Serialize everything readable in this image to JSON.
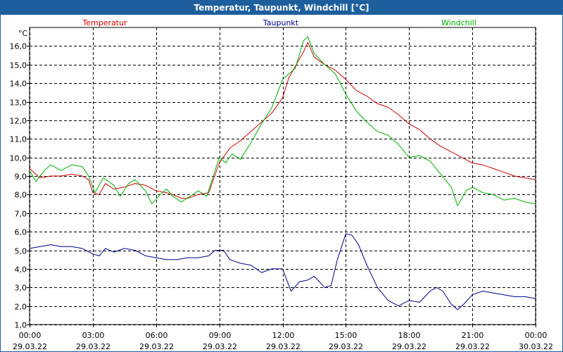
{
  "chart_data": {
    "type": "line",
    "title": "Temperatur, Taupunkt, Windchill [°C]",
    "ylabel": "°C",
    "xlabel": "",
    "ylim": [
      1,
      17
    ],
    "xlim_hours": [
      0,
      24
    ],
    "grid": true,
    "yticks": [
      1,
      2,
      3,
      4,
      5,
      6,
      7,
      8,
      9,
      10,
      11,
      12,
      13,
      14,
      15,
      16
    ],
    "ytick_labels": [
      "1,0",
      "2,0",
      "3,0",
      "4,0",
      "5,0",
      "6,0",
      "7,0",
      "8,0",
      "9,0",
      "10,0",
      "11,0",
      "12,0",
      "13,0",
      "14,0",
      "15,0",
      "16,0"
    ],
    "xticks": [
      {
        "hour": 0,
        "time": "00:00",
        "date": "29.03.22"
      },
      {
        "hour": 3,
        "time": "03:00",
        "date": "29.03.22"
      },
      {
        "hour": 6,
        "time": "06:00",
        "date": "29.03.22"
      },
      {
        "hour": 9,
        "time": "09:00",
        "date": "29.03.22"
      },
      {
        "hour": 12,
        "time": "12:00",
        "date": "29.03.22"
      },
      {
        "hour": 15,
        "time": "15:00",
        "date": "29.03.22"
      },
      {
        "hour": 18,
        "time": "18:00",
        "date": "29.03.22"
      },
      {
        "hour": 21,
        "time": "21:00",
        "date": "29.03.22"
      },
      {
        "hour": 24,
        "time": "00:00",
        "date": "30.03.22"
      }
    ],
    "series": [
      {
        "name": "Temperatur",
        "color": "#cc0000",
        "legend_pos": "left",
        "points": [
          [
            0,
            9.4
          ],
          [
            0.5,
            8.9
          ],
          [
            1,
            9.0
          ],
          [
            1.5,
            9.0
          ],
          [
            2,
            9.1
          ],
          [
            2.5,
            9.0
          ],
          [
            2.8,
            8.8
          ],
          [
            3,
            8.1
          ],
          [
            3.3,
            8.0
          ],
          [
            3.6,
            8.6
          ],
          [
            4,
            8.3
          ],
          [
            4.5,
            8.4
          ],
          [
            5,
            8.6
          ],
          [
            5.5,
            8.5
          ],
          [
            6,
            8.2
          ],
          [
            6.5,
            8.1
          ],
          [
            6.8,
            8.0
          ],
          [
            7.2,
            7.8
          ],
          [
            7.5,
            7.8
          ],
          [
            8,
            8.0
          ],
          [
            8.5,
            8.1
          ],
          [
            9,
            9.7
          ],
          [
            9.5,
            10.5
          ],
          [
            10,
            10.9
          ],
          [
            10.5,
            11.4
          ],
          [
            11,
            11.9
          ],
          [
            11.5,
            12.4
          ],
          [
            12,
            13.2
          ],
          [
            12.3,
            14.3
          ],
          [
            12.6,
            14.9
          ],
          [
            13,
            15.7
          ],
          [
            13.2,
            16.2
          ],
          [
            13.5,
            15.4
          ],
          [
            14,
            15.0
          ],
          [
            14.5,
            14.7
          ],
          [
            15,
            14.2
          ],
          [
            15.5,
            13.6
          ],
          [
            16,
            13.3
          ],
          [
            16.5,
            12.9
          ],
          [
            17,
            12.7
          ],
          [
            17.5,
            12.3
          ],
          [
            18,
            11.8
          ],
          [
            18.5,
            11.5
          ],
          [
            19,
            11.0
          ],
          [
            19.5,
            10.6
          ],
          [
            20,
            10.3
          ],
          [
            20.5,
            10.0
          ],
          [
            21,
            9.7
          ],
          [
            21.5,
            9.6
          ],
          [
            22,
            9.4
          ],
          [
            22.5,
            9.2
          ],
          [
            23,
            9.0
          ],
          [
            23.5,
            8.9
          ],
          [
            24,
            8.8
          ]
        ]
      },
      {
        "name": "Taupunkt",
        "color": "#00008b",
        "legend_pos": "center",
        "points": [
          [
            0,
            5.1
          ],
          [
            0.5,
            5.2
          ],
          [
            1,
            5.3
          ],
          [
            1.5,
            5.2
          ],
          [
            2,
            5.2
          ],
          [
            2.5,
            5.1
          ],
          [
            3,
            4.8
          ],
          [
            3.3,
            4.7
          ],
          [
            3.6,
            5.1
          ],
          [
            4,
            4.9
          ],
          [
            4.5,
            5.1
          ],
          [
            5,
            5.0
          ],
          [
            5.5,
            4.7
          ],
          [
            6,
            4.6
          ],
          [
            6.5,
            4.5
          ],
          [
            7,
            4.5
          ],
          [
            7.5,
            4.6
          ],
          [
            8,
            4.6
          ],
          [
            8.5,
            4.7
          ],
          [
            8.8,
            5.0
          ],
          [
            9.2,
            5.0
          ],
          [
            9.5,
            4.5
          ],
          [
            10,
            4.3
          ],
          [
            10.5,
            4.2
          ],
          [
            11,
            3.8
          ],
          [
            11.5,
            4.0
          ],
          [
            12,
            4.0
          ],
          [
            12.2,
            3.4
          ],
          [
            12.4,
            2.8
          ],
          [
            12.8,
            3.3
          ],
          [
            13.2,
            3.4
          ],
          [
            13.5,
            3.6
          ],
          [
            14,
            3.0
          ],
          [
            14.3,
            3.1
          ],
          [
            14.6,
            4.5
          ],
          [
            15,
            5.9
          ],
          [
            15.3,
            5.8
          ],
          [
            15.6,
            5.3
          ],
          [
            16,
            4.2
          ],
          [
            16.5,
            3.0
          ],
          [
            17,
            2.3
          ],
          [
            17.5,
            2.0
          ],
          [
            18,
            2.3
          ],
          [
            18.5,
            2.2
          ],
          [
            19,
            2.8
          ],
          [
            19.3,
            3.0
          ],
          [
            19.6,
            2.8
          ],
          [
            20,
            2.1
          ],
          [
            20.3,
            1.8
          ],
          [
            20.6,
            2.1
          ],
          [
            21,
            2.6
          ],
          [
            21.5,
            2.8
          ],
          [
            22,
            2.7
          ],
          [
            22.5,
            2.6
          ],
          [
            23,
            2.5
          ],
          [
            23.5,
            2.5
          ],
          [
            24,
            2.4
          ]
        ]
      },
      {
        "name": "Windchill",
        "color": "#00b000",
        "legend_pos": "right",
        "points": [
          [
            0,
            9.3
          ],
          [
            0.3,
            8.7
          ],
          [
            0.7,
            9.3
          ],
          [
            1,
            9.6
          ],
          [
            1.5,
            9.3
          ],
          [
            2,
            9.6
          ],
          [
            2.5,
            9.5
          ],
          [
            2.8,
            9.0
          ],
          [
            3.1,
            8.1
          ],
          [
            3.5,
            8.9
          ],
          [
            4,
            8.5
          ],
          [
            4.3,
            7.9
          ],
          [
            4.7,
            8.6
          ],
          [
            5,
            8.8
          ],
          [
            5.5,
            8.2
          ],
          [
            5.8,
            7.5
          ],
          [
            6.2,
            8.0
          ],
          [
            6.5,
            8.3
          ],
          [
            6.8,
            7.9
          ],
          [
            7.2,
            7.6
          ],
          [
            7.6,
            7.9
          ],
          [
            8,
            8.2
          ],
          [
            8.4,
            7.9
          ],
          [
            8.8,
            9.3
          ],
          [
            9,
            10.0
          ],
          [
            9.3,
            9.7
          ],
          [
            9.6,
            10.2
          ],
          [
            10,
            9.9
          ],
          [
            10.5,
            10.8
          ],
          [
            11,
            11.8
          ],
          [
            11.5,
            12.7
          ],
          [
            12,
            14.2
          ],
          [
            12.3,
            14.5
          ],
          [
            12.6,
            14.8
          ],
          [
            13,
            16.3
          ],
          [
            13.2,
            16.5
          ],
          [
            13.5,
            15.6
          ],
          [
            14,
            15.0
          ],
          [
            14.5,
            14.5
          ],
          [
            15,
            13.4
          ],
          [
            15.5,
            12.5
          ],
          [
            16,
            11.9
          ],
          [
            16.5,
            11.4
          ],
          [
            17,
            11.2
          ],
          [
            17.5,
            10.7
          ],
          [
            18,
            10.0
          ],
          [
            18.5,
            10.1
          ],
          [
            19,
            9.8
          ],
          [
            19.5,
            9.1
          ],
          [
            20,
            8.4
          ],
          [
            20.3,
            7.4
          ],
          [
            20.7,
            8.2
          ],
          [
            21,
            8.4
          ],
          [
            21.5,
            8.1
          ],
          [
            22,
            8.0
          ],
          [
            22.5,
            7.7
          ],
          [
            23,
            7.8
          ],
          [
            23.5,
            7.6
          ],
          [
            24,
            7.5
          ]
        ]
      }
    ]
  }
}
